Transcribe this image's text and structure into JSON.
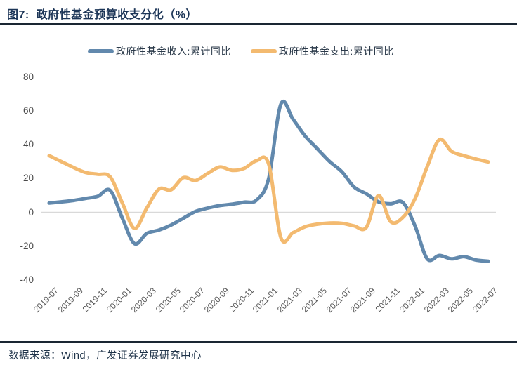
{
  "header": {
    "figure_label": "图7:",
    "title": "政府性基金预算收支分化（%）"
  },
  "legend": {
    "items": [
      {
        "label": "政府性基金收入:累计同比",
        "color": "#6289ad"
      },
      {
        "label": "政府性基金支出:累计同比",
        "color": "#f3ba70"
      }
    ]
  },
  "chart_data": {
    "type": "line",
    "x": [
      "2019-07",
      "2019-08",
      "2019-09",
      "2019-10",
      "2019-11",
      "2019-12",
      "2020-01",
      "2020-02",
      "2020-03",
      "2020-04",
      "2020-05",
      "2020-06",
      "2020-07",
      "2020-08",
      "2020-09",
      "2020-10",
      "2020-11",
      "2020-12",
      "2021-01",
      "2021-02",
      "2021-03",
      "2021-04",
      "2021-05",
      "2021-06",
      "2021-07",
      "2021-08",
      "2021-09",
      "2021-10",
      "2021-11",
      "2021-12",
      "2022-01",
      "2022-02",
      "2022-03",
      "2022-04",
      "2022-05",
      "2022-06",
      "2022-07"
    ],
    "series": [
      {
        "name": "政府性基金收入:累计同比",
        "color": "#6289ad",
        "values": [
          5.5,
          6.2,
          7,
          8.2,
          9.5,
          13,
          -3.5,
          -18.5,
          -12.5,
          -10.5,
          -7.5,
          -3.5,
          0.5,
          2.5,
          4,
          4.8,
          6,
          7.2,
          20,
          64,
          55,
          45,
          37.5,
          30,
          24,
          15,
          11,
          6.2,
          5,
          5.8,
          -8,
          -27.5,
          -25.5,
          -27.5,
          -26.2,
          -28.2,
          -28.9
        ]
      },
      {
        "name": "政府性基金支出:累计同比",
        "color": "#f3ba70",
        "values": [
          33.5,
          30,
          26.5,
          23.5,
          22.5,
          21,
          5.5,
          -9.5,
          2.5,
          13.7,
          13.3,
          20.5,
          18.8,
          23,
          26.8,
          24.8,
          26,
          30.5,
          28.5,
          -15,
          -12,
          -8.5,
          -7,
          -6.3,
          -6.5,
          -8,
          -9,
          10,
          -5.5,
          -3,
          8,
          27,
          43,
          36,
          33.5,
          31.5,
          29.8
        ]
      }
    ],
    "ylim": [
      -40,
      80
    ],
    "yticks": [
      80,
      60,
      40,
      20,
      0,
      -20,
      -40
    ],
    "xtick_labels": [
      "2019-07",
      "2019-09",
      "2019-11",
      "2020-01",
      "2020-03",
      "2020-05",
      "2020-07",
      "2020-09",
      "2020-11",
      "2021-01",
      "2021-03",
      "2021-05",
      "2021-07",
      "2021-09",
      "2021-11",
      "2022-01",
      "2022-03",
      "2022-05",
      "2022-07"
    ],
    "grid": "zero-line-only",
    "legend_position": "top",
    "title": "图7: 政府性基金预算收支分化（%）"
  },
  "footer": {
    "source_text": "数据来源：Wind，广发证券发展研究中心"
  },
  "colors": {
    "title_text": "#1c3557",
    "revenue_line": "#6289ad",
    "expenditure_line": "#f3ba70",
    "zero_gridline": "#d9d9d9",
    "ytick_text": "#4a4a4a",
    "xtick_text": "#595959",
    "rule": "#1a2633"
  }
}
